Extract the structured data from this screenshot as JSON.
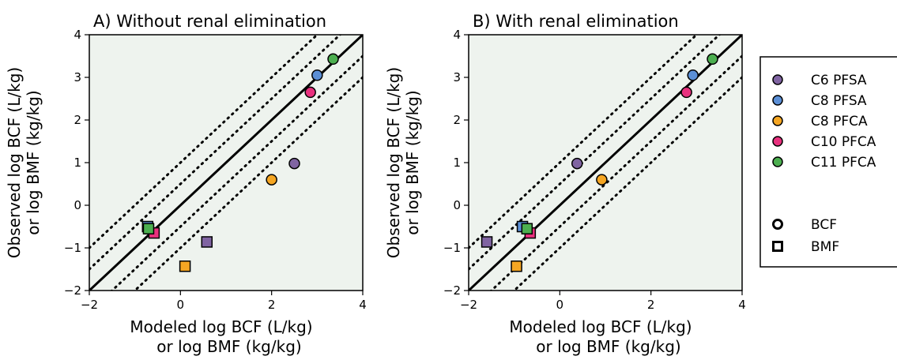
{
  "chart_data": [
    {
      "type": "scatter",
      "title": "A) Without renal elimination",
      "xlabel": [
        "Modeled log BCF (L/kg)",
        "or log BMF (kg/kg)"
      ],
      "ylabel": [
        "Observed log BCF (L/kg)",
        "or log BMF (kg/kg)"
      ],
      "xlim": [
        -2,
        4
      ],
      "ylim": [
        -2,
        4
      ],
      "xticks": [
        "-2",
        "0",
        "2",
        "4"
      ],
      "yticks": [
        "-2",
        "-1",
        "0",
        "1",
        "2",
        "3",
        "4"
      ],
      "grid": false,
      "reference_lines": {
        "solid": "1:1",
        "dotted_offsets": [
          -1,
          -0.5,
          0.5,
          1
        ]
      },
      "series": [
        {
          "name": "C6 PFSA",
          "points": [
            {
              "x": 2.5,
              "y": 0.98,
              "marker": "BCF"
            },
            {
              "x": 0.58,
              "y": -0.86,
              "marker": "BMF"
            }
          ]
        },
        {
          "name": "C8 PFSA",
          "points": [
            {
              "x": 3.0,
              "y": 3.05,
              "marker": "BCF"
            },
            {
              "x": -0.72,
              "y": -0.5,
              "marker": "BMF"
            }
          ]
        },
        {
          "name": "C8 PFCA",
          "points": [
            {
              "x": 2.0,
              "y": 0.6,
              "marker": "BCF"
            },
            {
              "x": 0.1,
              "y": -1.43,
              "marker": "BMF"
            }
          ]
        },
        {
          "name": "C10 PFCA",
          "points": [
            {
              "x": 2.85,
              "y": 2.65,
              "marker": "BCF"
            },
            {
              "x": -0.58,
              "y": -0.65,
              "marker": "BMF"
            }
          ]
        },
        {
          "name": "C11 PFCA",
          "points": [
            {
              "x": 3.35,
              "y": 3.43,
              "marker": "BCF"
            },
            {
              "x": -0.7,
              "y": -0.55,
              "marker": "BMF"
            }
          ]
        }
      ]
    },
    {
      "type": "scatter",
      "title": "B) With renal elimination",
      "xlabel": [
        "Modeled log BCF (L/kg)",
        "or log BMF (kg/kg)"
      ],
      "ylabel": [
        "Observed log BCF (L/kg)",
        "or log BMF (kg/kg)"
      ],
      "xlim": [
        -2,
        4
      ],
      "ylim": [
        -2,
        4
      ],
      "xticks": [
        "-2",
        "0",
        "2",
        "4"
      ],
      "yticks": [
        "-2",
        "-1",
        "0",
        "1",
        "2",
        "3",
        "4"
      ],
      "grid": false,
      "reference_lines": {
        "solid": "1:1",
        "dotted_offsets": [
          -1,
          -0.5,
          0.5,
          1
        ]
      },
      "series": [
        {
          "name": "C6 PFSA",
          "points": [
            {
              "x": 0.38,
              "y": 0.98,
              "marker": "BCF"
            },
            {
              "x": -1.6,
              "y": -0.86,
              "marker": "BMF"
            }
          ]
        },
        {
          "name": "C8 PFSA",
          "points": [
            {
              "x": 2.92,
              "y": 3.05,
              "marker": "BCF"
            },
            {
              "x": -0.82,
              "y": -0.5,
              "marker": "BMF"
            }
          ]
        },
        {
          "name": "C8 PFCA",
          "points": [
            {
              "x": 0.92,
              "y": 0.6,
              "marker": "BCF"
            },
            {
              "x": -0.95,
              "y": -1.43,
              "marker": "BMF"
            }
          ]
        },
        {
          "name": "C10 PFCA",
          "points": [
            {
              "x": 2.78,
              "y": 2.65,
              "marker": "BCF"
            },
            {
              "x": -0.65,
              "y": -0.65,
              "marker": "BMF"
            }
          ]
        },
        {
          "name": "C11 PFCA",
          "points": [
            {
              "x": 3.35,
              "y": 3.43,
              "marker": "BCF"
            },
            {
              "x": -0.72,
              "y": -0.55,
              "marker": "BMF"
            }
          ]
        }
      ]
    }
  ],
  "legend": {
    "placement": "right",
    "series": [
      {
        "name": "C6 PFSA",
        "color": "#8064a2"
      },
      {
        "name": "C8 PFSA",
        "color": "#5b8fd6"
      },
      {
        "name": "C8 PFCA",
        "color": "#f5a623"
      },
      {
        "name": "C10 PFCA",
        "color": "#e8317e"
      },
      {
        "name": "C11 PFCA",
        "color": "#4caf50"
      }
    ],
    "markers": [
      {
        "name": "BCF",
        "shape": "circle"
      },
      {
        "name": "BMF",
        "shape": "square"
      }
    ]
  },
  "colors": {
    "plot_background": "#eef3ee",
    "C6 PFSA": "#8064a2",
    "C8 PFSA": "#5b8fd6",
    "C8 PFCA": "#f5a623",
    "C10 PFCA": "#e8317e",
    "C11 PFCA": "#4caf50"
  }
}
